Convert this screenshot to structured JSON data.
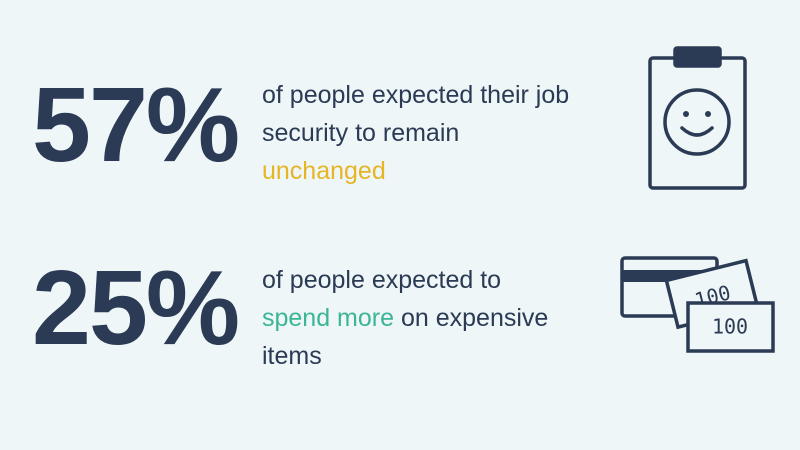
{
  "stats": [
    {
      "value": "57%",
      "line1": "of people expected their job",
      "line2": "security to remain",
      "highlight": "unchanged"
    },
    {
      "value": "25%",
      "line1": "of people expected to",
      "highlight": "spend more",
      "line2": "on expensive",
      "line3": "items"
    }
  ],
  "icons": {
    "bill_back": "100",
    "bill_front": "100"
  }
}
